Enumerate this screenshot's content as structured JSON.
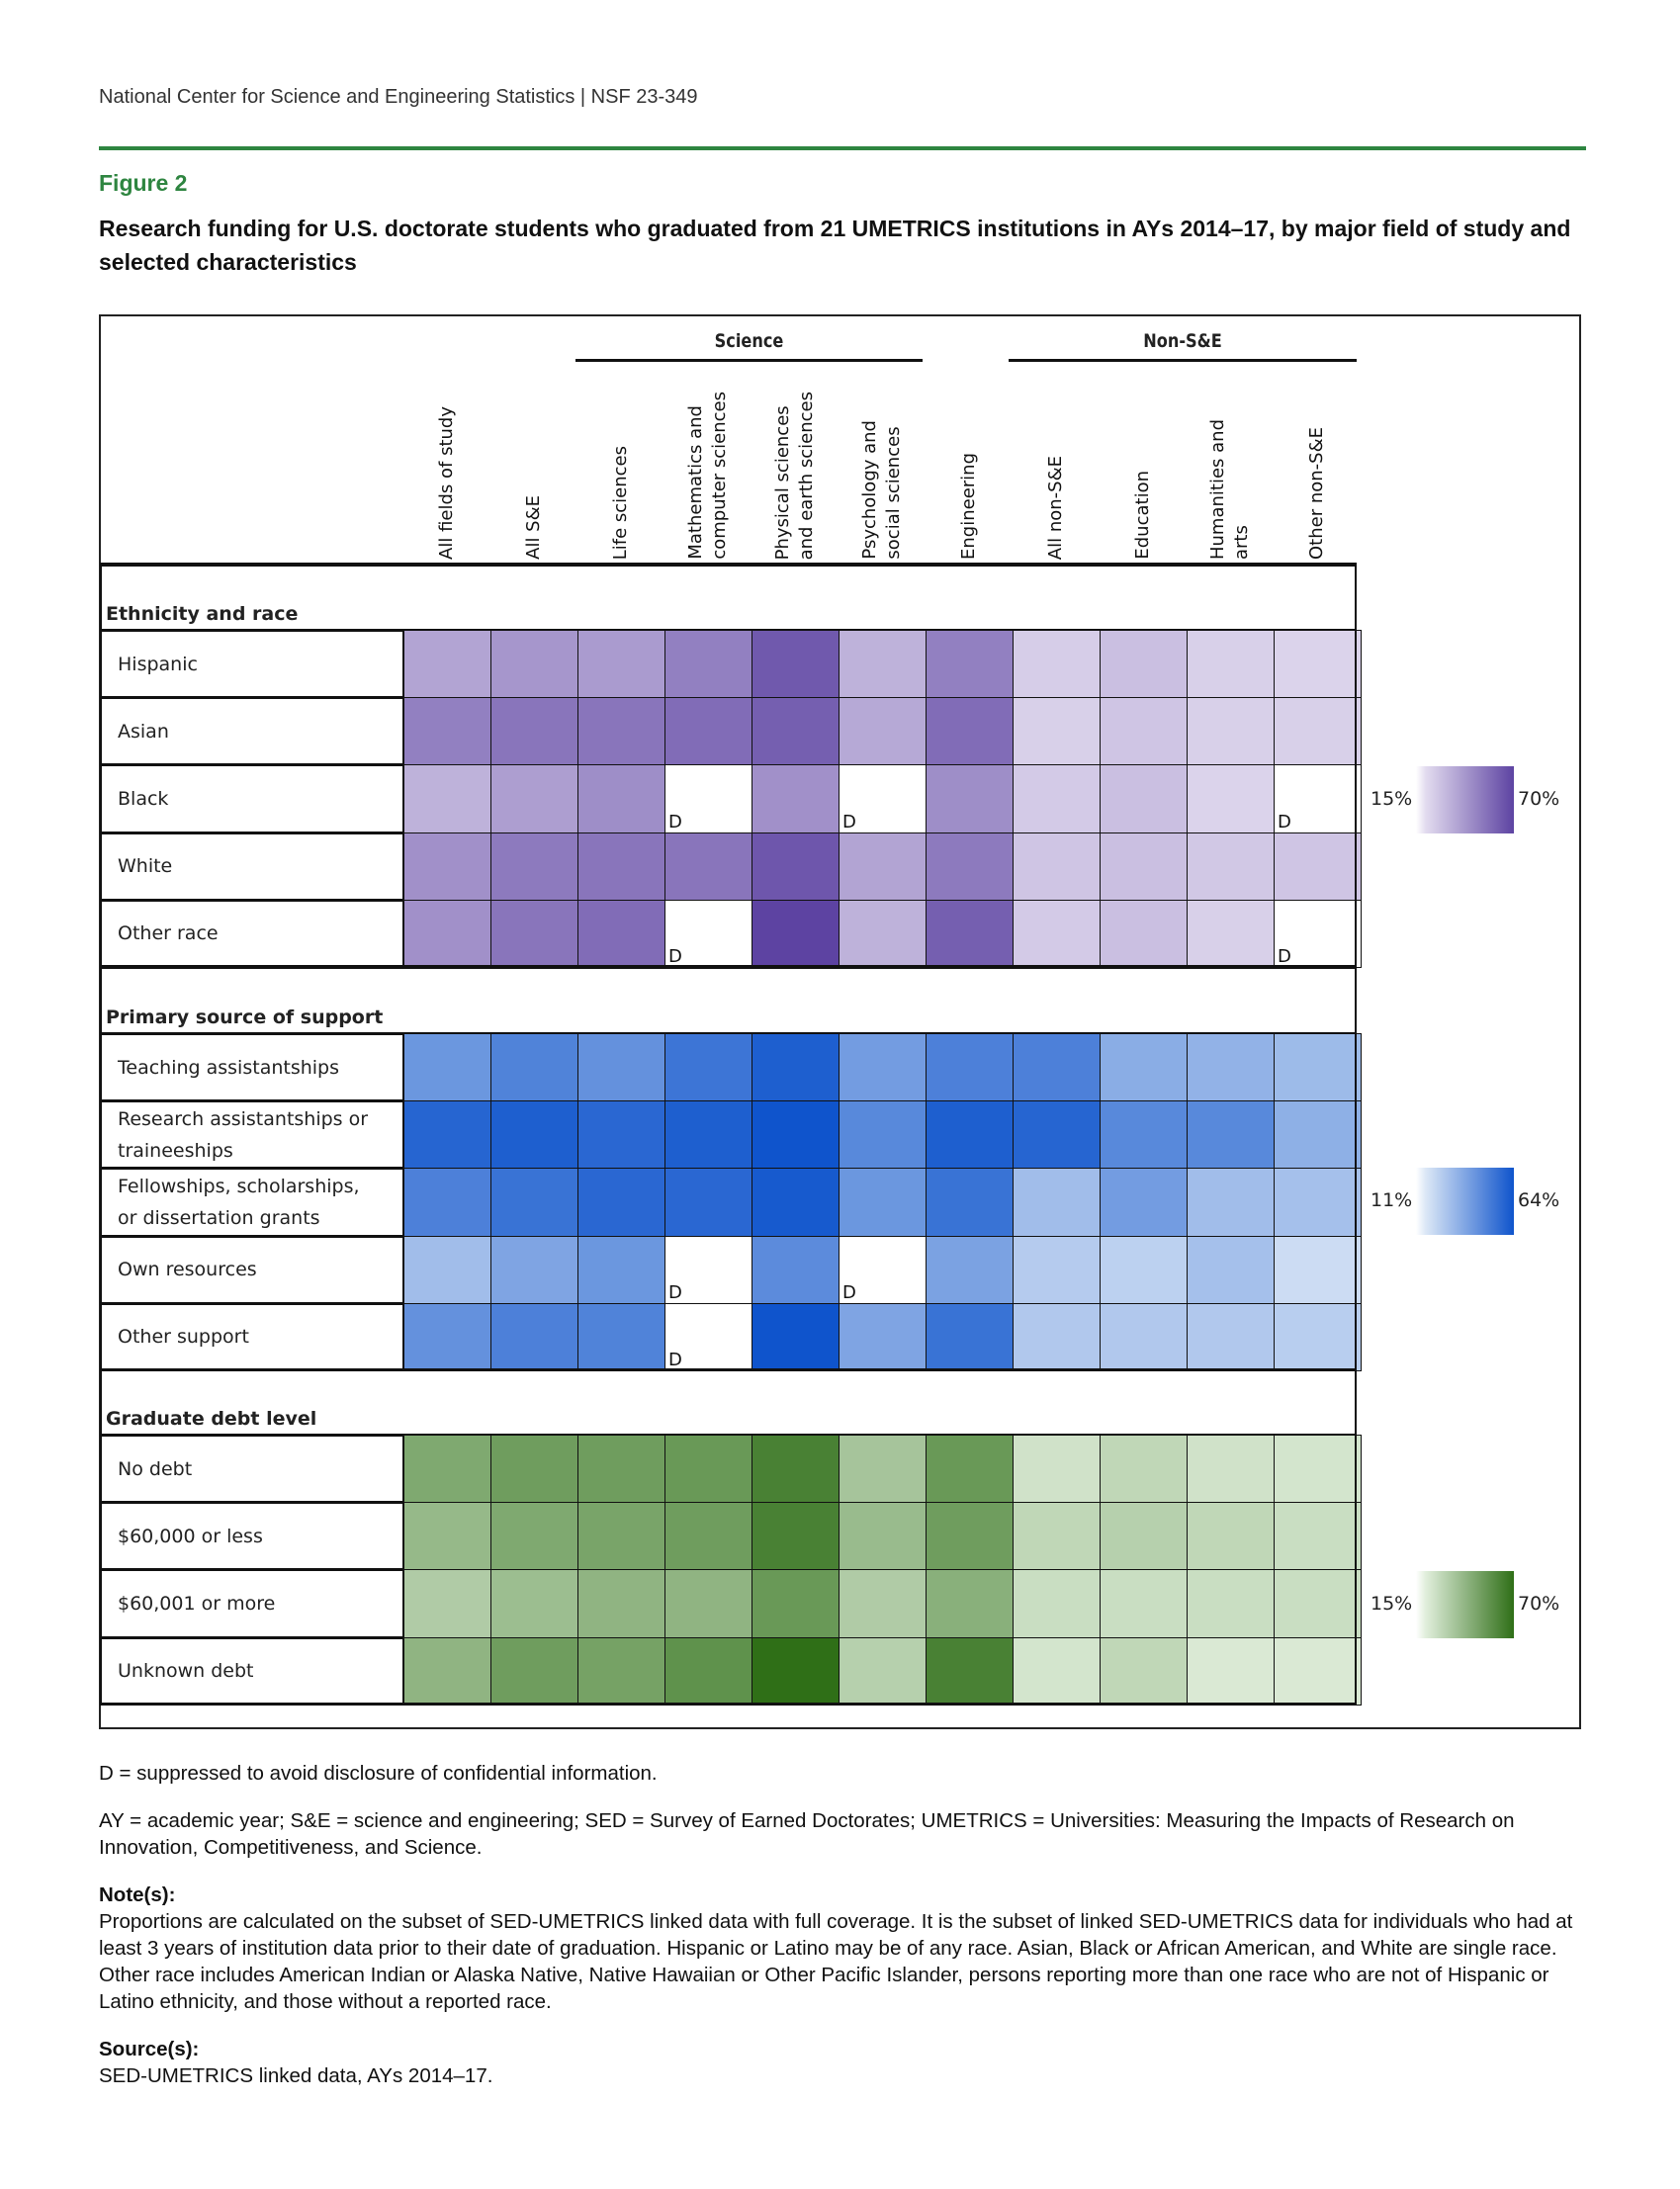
{
  "header": {
    "text": "National Center for Science and Engineering Statistics  |  NSF 23-349"
  },
  "figure": {
    "label": "Figure 2",
    "title": "Research funding for U.S. doctorate students who graduated from 21 UMETRICS institutions in AYs 2014–17, by major field of study and selected characteristics"
  },
  "chart_data": {
    "type": "heatmap",
    "column_groups": [
      {
        "label": "Science",
        "columns": [
          "Life sciences",
          "Mathematics and computer sciences",
          "Physical sciences and earth sciences",
          "Psychology and social sciences"
        ]
      },
      {
        "label": "Non-S&E",
        "columns": [
          "All non-S&E",
          "Education",
          "Humanities and arts",
          "Other non-S&E"
        ]
      }
    ],
    "columns": [
      "All fields of study",
      "All S&E",
      "Life sciences",
      "Mathematics and\ncomputer sciences",
      "Physical sciences\nand earth sciences",
      "Psychology and\nsocial sciences",
      "Engineering",
      "All non-S&E",
      "Education",
      "Humanities and\narts",
      "Other non-S&E"
    ],
    "suppressed_marker": "D",
    "sections": [
      {
        "label": "Ethnicity and race",
        "scale": {
          "min": 15,
          "max": 70,
          "min_label": "15%",
          "max_label": "70%",
          "low_color": "#e2dbef",
          "high_color": "#5d43a2"
        },
        "rows": [
          {
            "label": "Hispanic",
            "values": [
              35,
              40,
              38,
              48,
              62,
              30,
              48,
              20,
              25,
              19,
              18
            ]
          },
          {
            "label": "Asian",
            "values": [
              48,
              52,
              52,
              55,
              60,
              33,
              55,
              19,
              23,
              19,
              19
            ]
          },
          {
            "label": "Black",
            "values": [
              30,
              37,
              43,
              null,
              42,
              null,
              43,
              21,
              25,
              18,
              null
            ]
          },
          {
            "label": "White",
            "values": [
              42,
              50,
              52,
              52,
              63,
              35,
              50,
              23,
              25,
              22,
              23
            ]
          },
          {
            "label": "Other race",
            "values": [
              42,
              52,
              55,
              null,
              70,
              30,
              60,
              21,
              25,
              19,
              null
            ]
          }
        ]
      },
      {
        "label": "Primary source of support",
        "scale": {
          "min": 11,
          "max": 64,
          "min_label": "11%",
          "max_label": "64%",
          "low_color": "#dbe7f6",
          "high_color": "#0f54cc"
        },
        "rows": [
          {
            "label": "Teaching assistantships",
            "values": [
              40,
              47,
              42,
              52,
              60,
              38,
              48,
              48,
              32,
              30,
              27
            ]
          },
          {
            "label": "Research assistantships or\ntraineeships",
            "values": [
              58,
              60,
              57,
              60,
              64,
              45,
              60,
              58,
              45,
              45,
              31
            ]
          },
          {
            "label": "Fellowships, scholarships,\nor dissertation grants",
            "values": [
              48,
              53,
              57,
              57,
              62,
              40,
              53,
              26,
              38,
              26,
              25
            ]
          },
          {
            "label": "Own resources",
            "values": [
              26,
              35,
              40,
              null,
              44,
              null,
              36,
              21,
              19,
              25,
              15
            ]
          },
          {
            "label": "Other support",
            "values": [
              42,
              48,
              47,
              null,
              64,
              35,
              53,
              22,
              22,
              22,
              20
            ]
          }
        ]
      },
      {
        "label": "Graduate debt level",
        "scale": {
          "min": 15,
          "max": 70,
          "min_label": "15%",
          "max_label": "70%",
          "low_color": "#e0eedb",
          "high_color": "#2f6f17"
        },
        "rows": [
          {
            "label": "No debt",
            "values": [
              45,
              50,
              50,
              52,
              62,
              33,
              52,
              20,
              25,
              20,
              19
            ]
          },
          {
            "label": "$60,000 or less",
            "values": [
              38,
              45,
              47,
              50,
              62,
              37,
              50,
              25,
              28,
              25,
              22
            ]
          },
          {
            "label": "$60,001 or more",
            "values": [
              30,
              36,
              40,
              40,
              52,
              30,
              42,
              22,
              22,
              22,
              22
            ]
          },
          {
            "label": "Unknown debt",
            "values": [
              40,
              50,
              48,
              55,
              70,
              28,
              62,
              19,
              25,
              17,
              17
            ]
          }
        ]
      }
    ]
  },
  "footnotes": {
    "suppressed": "D = suppressed to avoid disclosure of confidential information.",
    "abbreviations": "AY = academic year; S&E = science and engineering; SED = Survey of Earned Doctorates; UMETRICS = Universities: Measuring the Impacts of Research on Innovation, Competitiveness, and Science.",
    "notes_label": "Note(s):",
    "notes": "Proportions are calculated on the subset of SED-UMETRICS linked data with full coverage. It is the subset of linked SED-UMETRICS data for individuals who had at least 3 years of institution data prior to their date of graduation. Hispanic or Latino may be of any race. Asian, Black or African American, and White are single race. Other race includes American Indian or Alaska Native, Native Hawaiian or Other Pacific Islander, persons reporting more than one race who are not of Hispanic or Latino ethnicity, and those without a reported race.",
    "source_label": "Source(s):",
    "source": "SED-UMETRICS linked data, AYs 2014–17."
  }
}
